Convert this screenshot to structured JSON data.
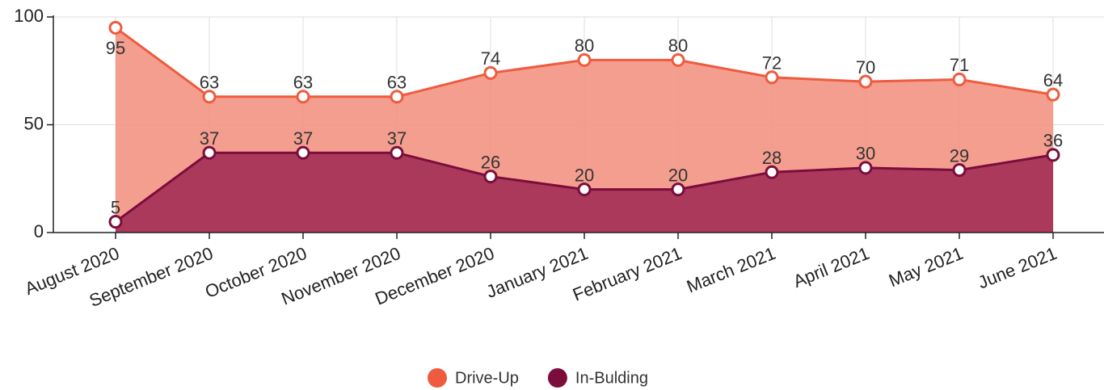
{
  "chart_data": {
    "type": "area",
    "categories": [
      "August 2020",
      "September 2020",
      "October 2020",
      "November 2020",
      "December 2020",
      "January 2021",
      "February 2021",
      "March 2021",
      "April 2021",
      "May 2021",
      "June 2021"
    ],
    "series": [
      {
        "name": "Drive-Up",
        "color": "#ee5b3e",
        "fill": "#f39383",
        "values": [
          95,
          63,
          63,
          63,
          74,
          80,
          80,
          72,
          70,
          71,
          64
        ]
      },
      {
        "name": "In-Bulding",
        "color": "#7b0d3d",
        "fill": "#a53458",
        "values": [
          5,
          37,
          37,
          37,
          26,
          20,
          20,
          28,
          30,
          29,
          36
        ]
      }
    ],
    "ylim": [
      0,
      100
    ],
    "yticks": [
      0,
      50,
      100
    ],
    "grid": true,
    "legend": "bottom"
  }
}
